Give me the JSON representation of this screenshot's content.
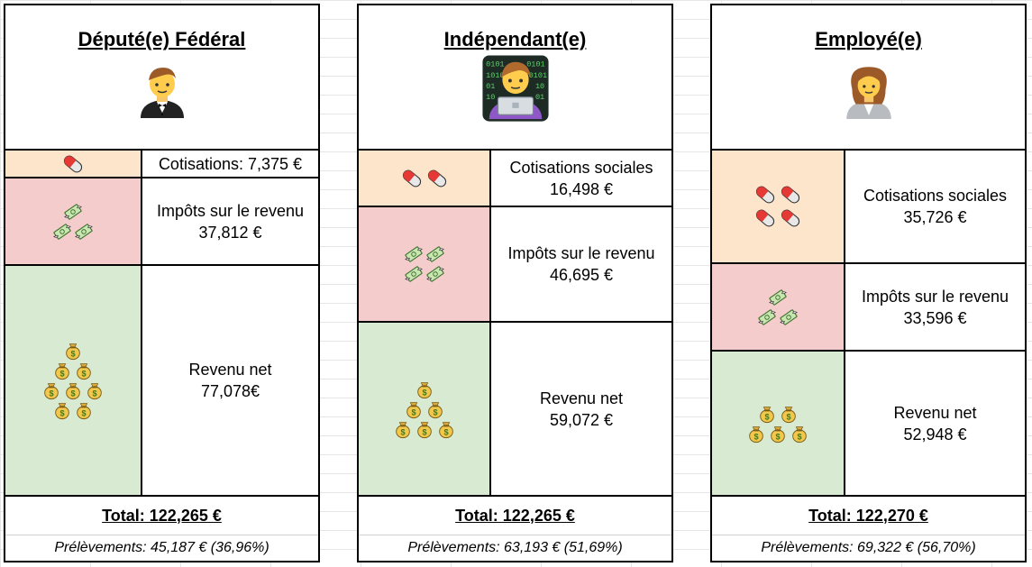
{
  "icons": {
    "cotisations": "pill-icon",
    "impots": "flying-money-icon",
    "revenu": "money-bag-icon"
  },
  "colors": {
    "cotisations_bg": "#fde5cc",
    "impots_bg": "#f5cccc",
    "revenu_bg": "#d9ead3"
  },
  "cards": [
    {
      "title": "Député(e) Fédéral",
      "avatar": "man-in-tuxedo-icon",
      "cotisations": "Cotisations: 7,375 €",
      "impots_label": "Impôts sur le revenu",
      "impots_value": "37,812 €",
      "revenu_label": "Revenu net",
      "revenu_value": "77,078€",
      "total": "Total: 122,265 €",
      "prelevements": "Prélèvements: 45,187 € (36,96%)"
    },
    {
      "title": "Indépendant(e)",
      "avatar": "technologist-icon",
      "cotisations_label": "Cotisations sociales",
      "cotisations_value": "16,498 €",
      "impots_label": "Impôts sur le revenu",
      "impots_value": "46,695 €",
      "revenu_label": "Revenu net",
      "revenu_value": "59,072 €",
      "total": "Total: 122,265 €",
      "prelevements": "Prélèvements: 63,193 € (51,69%)"
    },
    {
      "title": "Employé(e)",
      "avatar": "woman-office-worker-icon",
      "cotisations_label": "Cotisations sociales",
      "cotisations_value": "35,726 €",
      "impots_label": "Impôts sur le revenu",
      "impots_value": "33,596 €",
      "revenu_label": "Revenu net",
      "revenu_value": "52,948 €",
      "total": "Total: 122,270 €",
      "prelevements": "Prélèvements: 69,322 € (56,70%)"
    }
  ]
}
